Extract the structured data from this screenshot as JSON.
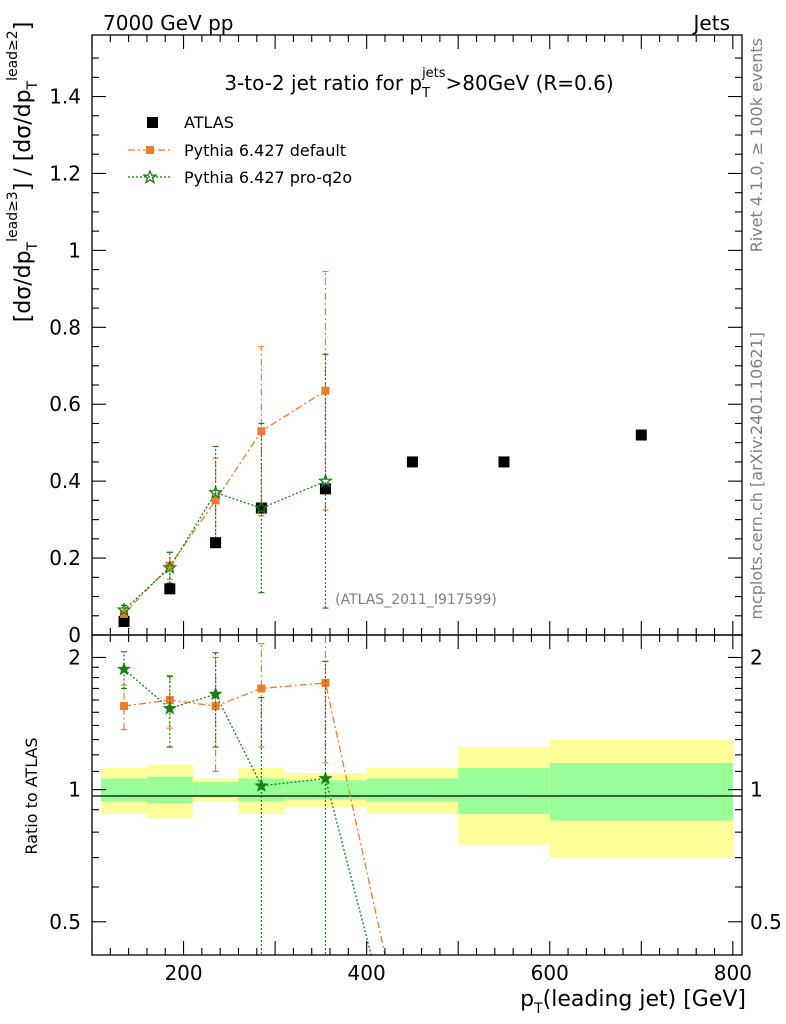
{
  "header": {
    "left": "7000 GeV pp",
    "right": "Jets",
    "side_top": "Rivet 4.1.0, ≥ 100k events",
    "side_bottom": "mcplots.cern.ch [arXiv:2401.10621]"
  },
  "chart_data": {
    "type": "scatter",
    "title_main": "3-to-2 jet ratio for p",
    "title_sub": "T",
    "title_sup": "jets",
    "title_rest": ">80GeV (R=0.6)",
    "ylabel": "[dσ/dp_T^{lead≥3}] / [dσ/dp_T^{lead≥2}]",
    "ylabel_parts": {
      "a": "[dσ/dp",
      "b": "T",
      "c": "lead≥3",
      "d": "] / [dσ/dp",
      "e": "T",
      "f": "lead≥2",
      "g": "]"
    },
    "xlabel_parts": {
      "a": "p",
      "b": "T",
      "c": "(leading jet) [GeV]"
    },
    "xlabel": "p_T(leading jet) [GeV]",
    "ratio_ylabel": "Ratio to ATLAS",
    "watermark": "(ATLAS_2011_I917599)",
    "xlim": [
      100,
      810
    ],
    "ylim": [
      0,
      1.56
    ],
    "ratio_ylim": [
      0.42,
      2.25
    ],
    "xticks": [
      200,
      400,
      600,
      800
    ],
    "xtick_labels": [
      "200",
      "400",
      "600",
      "800"
    ],
    "yticks": [
      0,
      0.2,
      0.4,
      0.6,
      0.8,
      1,
      1.2,
      1.4
    ],
    "ytick_labels": [
      "0",
      "0.2",
      "0.4",
      "0.6",
      "0.8",
      "1",
      "1.2",
      "1.4"
    ],
    "ratio_yticks": [
      0.5,
      1,
      2
    ],
    "ratio_ytick_labels": [
      "0.5",
      "1",
      "2"
    ],
    "legend": {
      "position": "top-left",
      "entries": [
        "ATLAS",
        "Pythia 6.427 default",
        "Pythia 6.427 pro-q2o"
      ]
    },
    "bins": [
      {
        "lo": 110,
        "hi": 160,
        "x": 135
      },
      {
        "lo": 160,
        "hi": 210,
        "x": 185
      },
      {
        "lo": 210,
        "hi": 260,
        "x": 235
      },
      {
        "lo": 260,
        "hi": 310,
        "x": 285
      },
      {
        "lo": 310,
        "hi": 400,
        "x": 355
      },
      {
        "lo": 400,
        "hi": 500,
        "x": 450
      },
      {
        "lo": 500,
        "hi": 600,
        "x": 550
      },
      {
        "lo": 600,
        "hi": 800,
        "x": 700
      }
    ],
    "series": [
      {
        "name": "ATLAS",
        "color": "#000000",
        "x": [
          135,
          185,
          235,
          285,
          355,
          450,
          550,
          700
        ],
        "y": [
          0.035,
          0.12,
          0.24,
          0.33,
          0.38,
          0.45,
          0.45,
          0.52
        ],
        "band_inner": [
          0.06,
          0.07,
          0.04,
          0.06,
          0.05,
          0.06,
          0.12,
          0.15
        ],
        "band_outer": [
          0.12,
          0.14,
          0.06,
          0.12,
          0.09,
          0.12,
          0.25,
          0.3
        ]
      },
      {
        "name": "Pythia 6.427 default",
        "color": "#ee7c2a",
        "x": [
          135,
          185,
          235,
          285,
          355
        ],
        "y": [
          0.055,
          0.18,
          0.35,
          0.53,
          0.635
        ],
        "yerr": [
          0.015,
          0.035,
          0.11,
          0.22,
          0.31
        ],
        "ratio": [
          1.55,
          1.6,
          1.55,
          1.7,
          1.75
        ],
        "ratio_err": [
          0.18,
          0.22,
          0.45,
          0.45,
          0.6
        ],
        "ratio_tail": [
          420,
          0.42
        ]
      },
      {
        "name": "Pythia 6.427 pro-q2o",
        "color": "#1a7f1a",
        "x": [
          135,
          185,
          235,
          285,
          355
        ],
        "y": [
          0.065,
          0.175,
          0.37,
          0.33,
          0.4
        ],
        "yerr": [
          0.012,
          0.04,
          0.12,
          0.22,
          0.33
        ],
        "ratio": [
          1.88,
          1.53,
          1.65,
          1.02,
          1.06
        ],
        "ratio_err": [
          0.18,
          0.28,
          0.4,
          0.6,
          0.9
        ],
        "ratio_tail": [
          405,
          0.42
        ]
      }
    ]
  }
}
